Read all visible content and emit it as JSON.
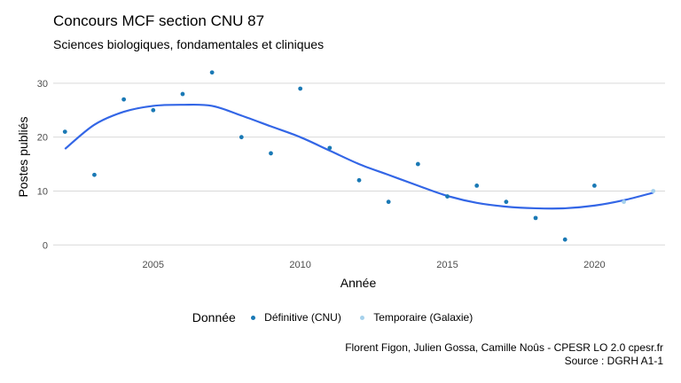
{
  "chart_data": {
    "type": "scatter",
    "title": "Concours MCF section CNU 87",
    "subtitle": "Sciences biologiques, fondamentales et cliniques",
    "xlabel": "Année",
    "ylabel": "Postes publiés",
    "xlim": [
      2001.6,
      2022.4
    ],
    "ylim": [
      -1.6,
      33.6
    ],
    "x_ticks": [
      2005,
      2010,
      2015,
      2020
    ],
    "y_ticks": [
      0,
      10,
      20,
      30
    ],
    "grid": true,
    "legend_position": "bottom",
    "legend_title": "Donnée",
    "series": [
      {
        "name": "Définitive (CNU)",
        "color": "#1a79b5",
        "points": [
          [
            2002,
            21
          ],
          [
            2003,
            13
          ],
          [
            2004,
            27
          ],
          [
            2005,
            25
          ],
          [
            2006,
            28
          ],
          [
            2007,
            32
          ],
          [
            2008,
            20
          ],
          [
            2009,
            17
          ],
          [
            2010,
            29
          ],
          [
            2011,
            18
          ],
          [
            2012,
            12
          ],
          [
            2013,
            8
          ],
          [
            2014,
            15
          ],
          [
            2015,
            9
          ],
          [
            2016,
            11
          ],
          [
            2017,
            8
          ],
          [
            2018,
            5
          ],
          [
            2019,
            1
          ],
          [
            2020,
            11
          ]
        ]
      },
      {
        "name": "Temporaire (Galaxie)",
        "color": "#a6d1ec",
        "points": [
          [
            2021,
            8
          ],
          [
            2022,
            10
          ]
        ]
      }
    ],
    "trend": {
      "color": "#3366e6",
      "points": [
        [
          2002,
          17.8
        ],
        [
          2003,
          22.3
        ],
        [
          2004,
          24.7
        ],
        [
          2005,
          25.8
        ],
        [
          2006,
          26.0
        ],
        [
          2007,
          25.8
        ],
        [
          2008,
          24.0
        ],
        [
          2009,
          22.0
        ],
        [
          2010,
          20.0
        ],
        [
          2011,
          17.5
        ],
        [
          2012,
          15.0
        ],
        [
          2013,
          13.0
        ],
        [
          2014,
          11.0
        ],
        [
          2015,
          9.1
        ],
        [
          2016,
          7.8
        ],
        [
          2017,
          7.1
        ],
        [
          2018,
          6.8
        ],
        [
          2019,
          6.8
        ],
        [
          2020,
          7.3
        ],
        [
          2021,
          8.3
        ],
        [
          2022,
          9.7
        ]
      ]
    }
  },
  "caption": {
    "line1": "Florent Figon, Julien Gossa, Camille Noûs - CPESR LO 2.0 cpesr.fr",
    "line2": "Source : DGRH A1-1"
  }
}
